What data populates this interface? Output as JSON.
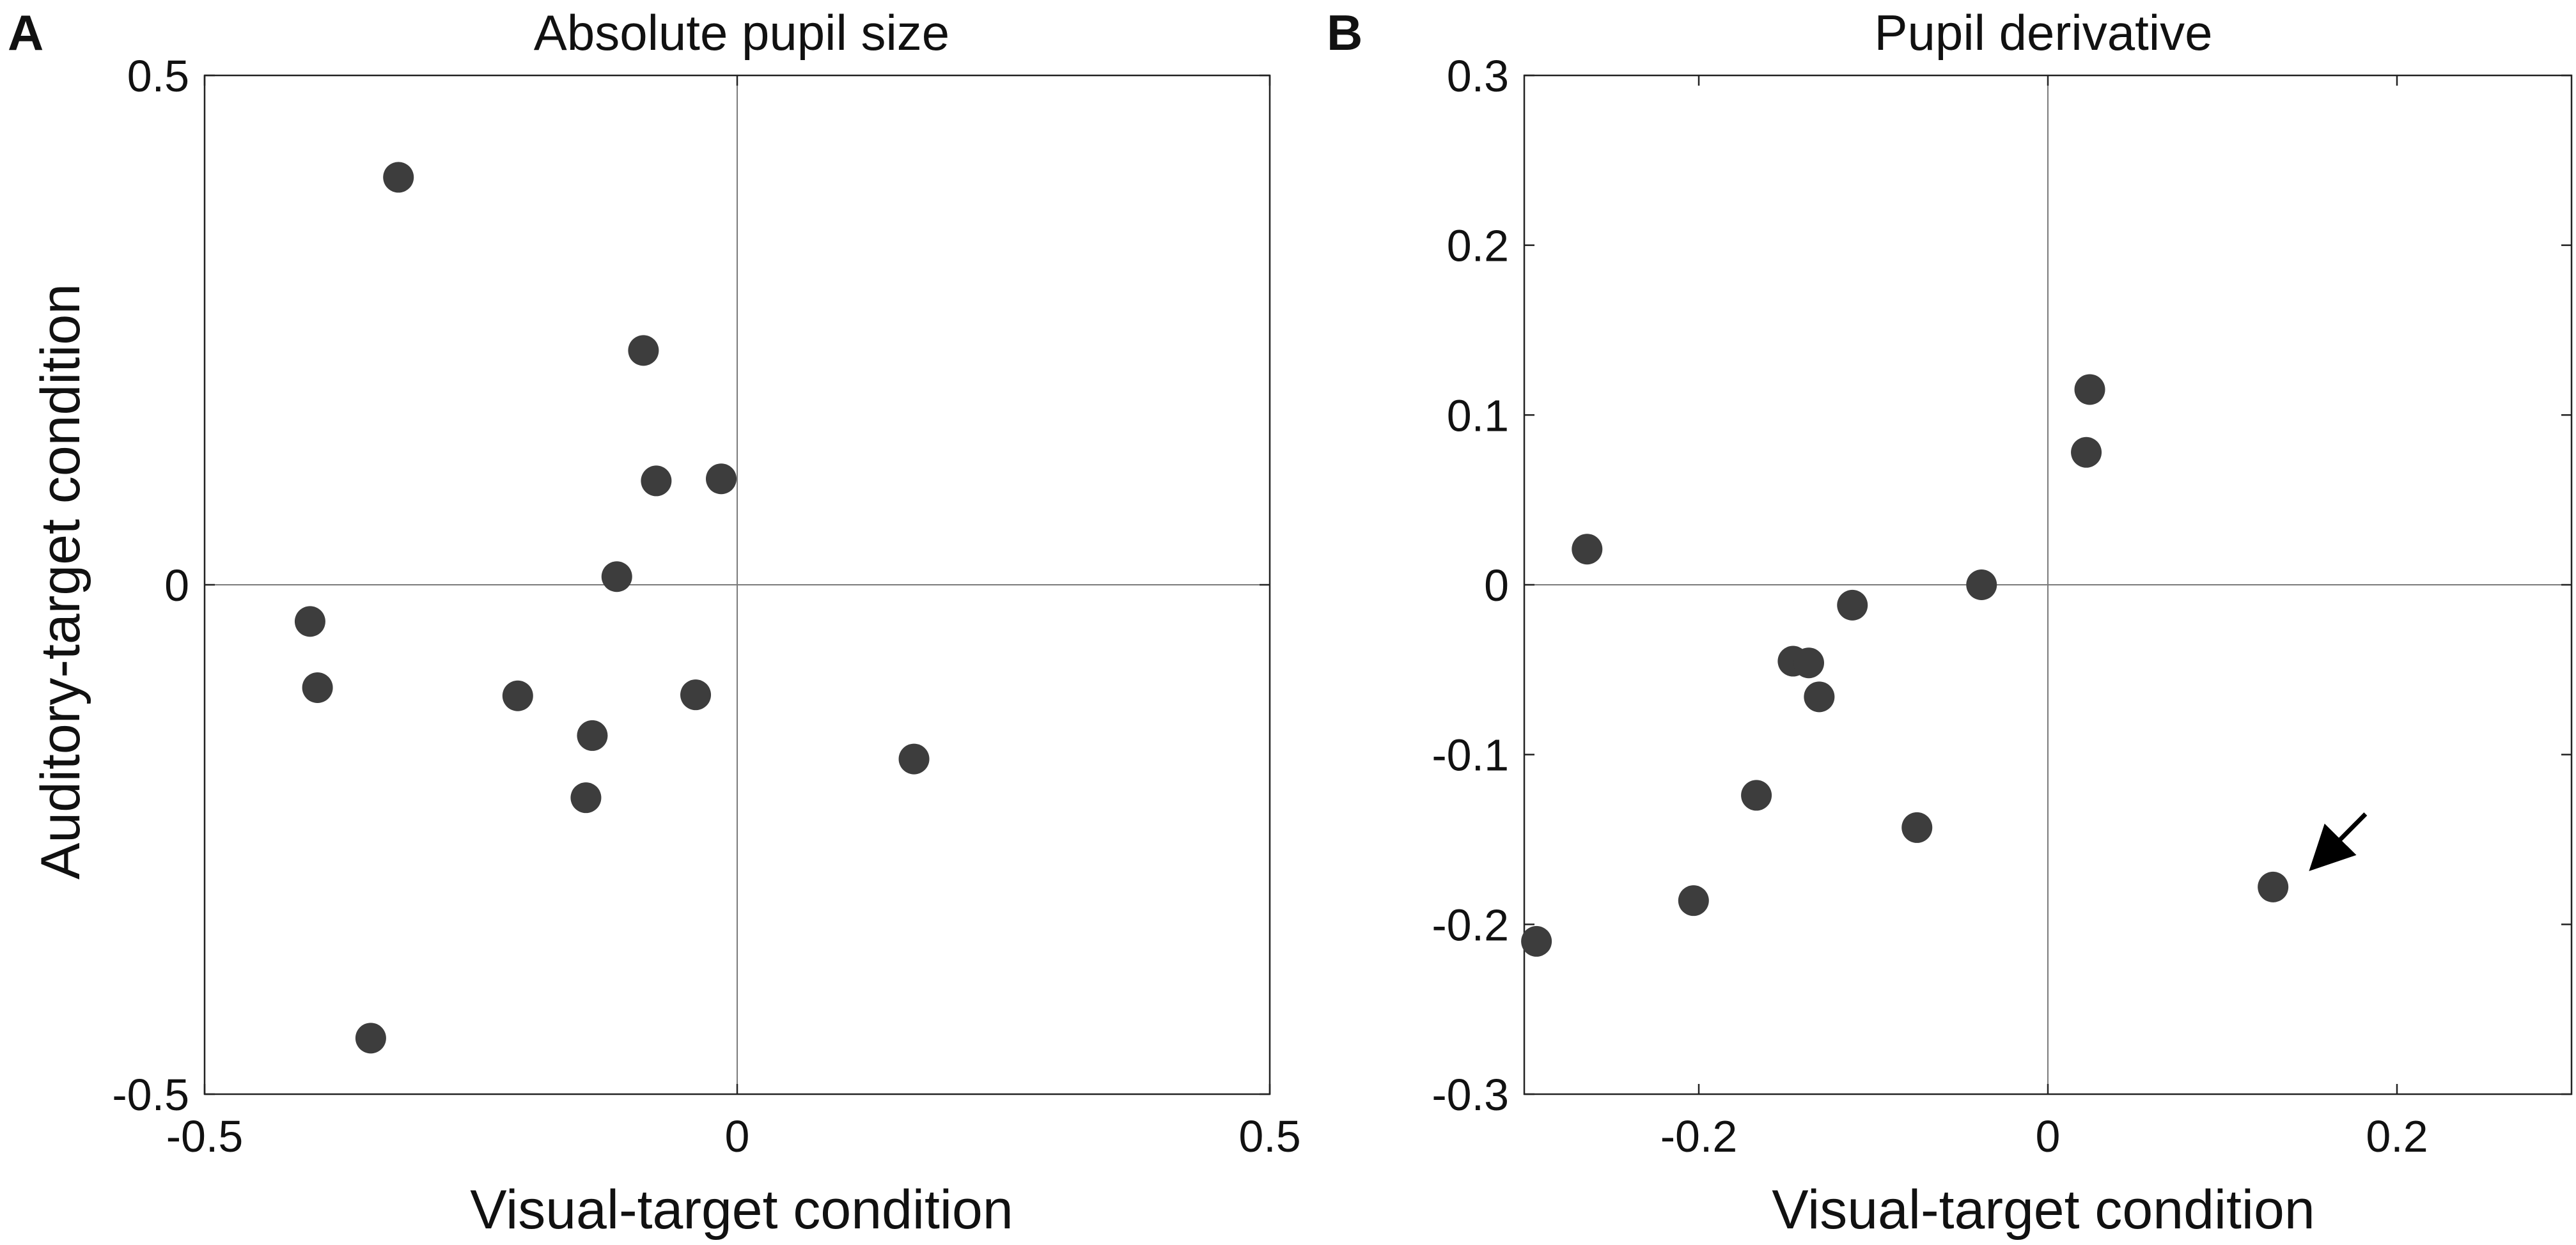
{
  "figure": {
    "marker_color": "#3d3d3d",
    "axis_color": "#222222",
    "zero_line_color": "#7a7a7a"
  },
  "chart_data": [
    {
      "type": "scatter",
      "panel_letter": "A",
      "title": "Absolute pupil size",
      "xlabel": "Visual-target condition",
      "ylabel": "Auditory-target condition",
      "xlim": [
        -0.5,
        0.5
      ],
      "ylim": [
        -0.5,
        0.5
      ],
      "xticks": [
        -0.5,
        0,
        0.5
      ],
      "xtick_labels": [
        "-0.5",
        "0",
        "0.5"
      ],
      "yticks": [
        -0.5,
        0,
        0.5
      ],
      "ytick_labels": [
        "-0.5",
        "0",
        "0.5"
      ],
      "grid": false,
      "zero_lines": true,
      "points": [
        {
          "x": -0.318,
          "y": 0.4
        },
        {
          "x": -0.088,
          "y": 0.23
        },
        {
          "x": -0.076,
          "y": 0.102
        },
        {
          "x": -0.015,
          "y": 0.104
        },
        {
          "x": -0.113,
          "y": 0.008
        },
        {
          "x": -0.401,
          "y": -0.036
        },
        {
          "x": -0.394,
          "y": -0.101
        },
        {
          "x": -0.206,
          "y": -0.109
        },
        {
          "x": -0.039,
          "y": -0.108
        },
        {
          "x": -0.136,
          "y": -0.148
        },
        {
          "x": -0.142,
          "y": -0.209
        },
        {
          "x": 0.166,
          "y": -0.171
        },
        {
          "x": -0.344,
          "y": -0.445
        }
      ]
    },
    {
      "type": "scatter",
      "panel_letter": "B",
      "title": "Pupil derivative",
      "xlabel": "Visual-target condition",
      "ylabel": "",
      "xlim": [
        -0.3,
        0.3
      ],
      "ylim": [
        -0.3,
        0.3
      ],
      "xticks": [
        -0.2,
        0,
        0.2
      ],
      "xtick_labels": [
        "-0.2",
        "0",
        "0.2"
      ],
      "yticks": [
        -0.3,
        -0.2,
        -0.1,
        0,
        0.1,
        0.2,
        0.3
      ],
      "ytick_labels": [
        "-0.3",
        "-0.2",
        "-0.1",
        "0",
        "0.1",
        "0.2",
        "0.3"
      ],
      "grid": false,
      "zero_lines": true,
      "points": [
        {
          "x": 0.024,
          "y": 0.115
        },
        {
          "x": 0.022,
          "y": 0.078
        },
        {
          "x": -0.264,
          "y": 0.021
        },
        {
          "x": -0.038,
          "y": 0.0
        },
        {
          "x": -0.112,
          "y": -0.012
        },
        {
          "x": -0.146,
          "y": -0.045
        },
        {
          "x": -0.137,
          "y": -0.046
        },
        {
          "x": -0.131,
          "y": -0.066
        },
        {
          "x": -0.167,
          "y": -0.124
        },
        {
          "x": -0.075,
          "y": -0.143
        },
        {
          "x": 0.129,
          "y": -0.178
        },
        {
          "x": -0.203,
          "y": -0.186
        },
        {
          "x": -0.293,
          "y": -0.21
        }
      ],
      "annotations": [
        {
          "type": "arrow",
          "from": [
            0.182,
            -0.135
          ],
          "to": [
            0.155,
            -0.163
          ]
        }
      ]
    }
  ]
}
